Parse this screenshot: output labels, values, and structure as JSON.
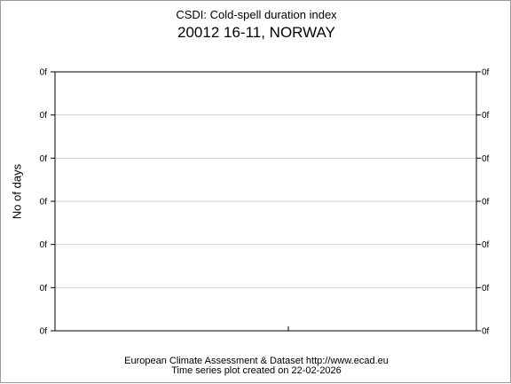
{
  "chart_data": {
    "type": "line",
    "title": "CSDI: Cold-spell duration index",
    "subtitle": "20012 16-11, NORWAY",
    "xlabel": "",
    "ylabel": "No of days",
    "y_tick_labels": [
      "0f",
      "0f",
      "0f",
      "0f",
      "0f",
      "0f",
      "0f"
    ],
    "series": [],
    "grid": true,
    "footer": {
      "line1": "European Climate Assessment & Dataset  http://www.ecad.eu",
      "line2": "Time series plot created on 22-02-2026"
    }
  }
}
